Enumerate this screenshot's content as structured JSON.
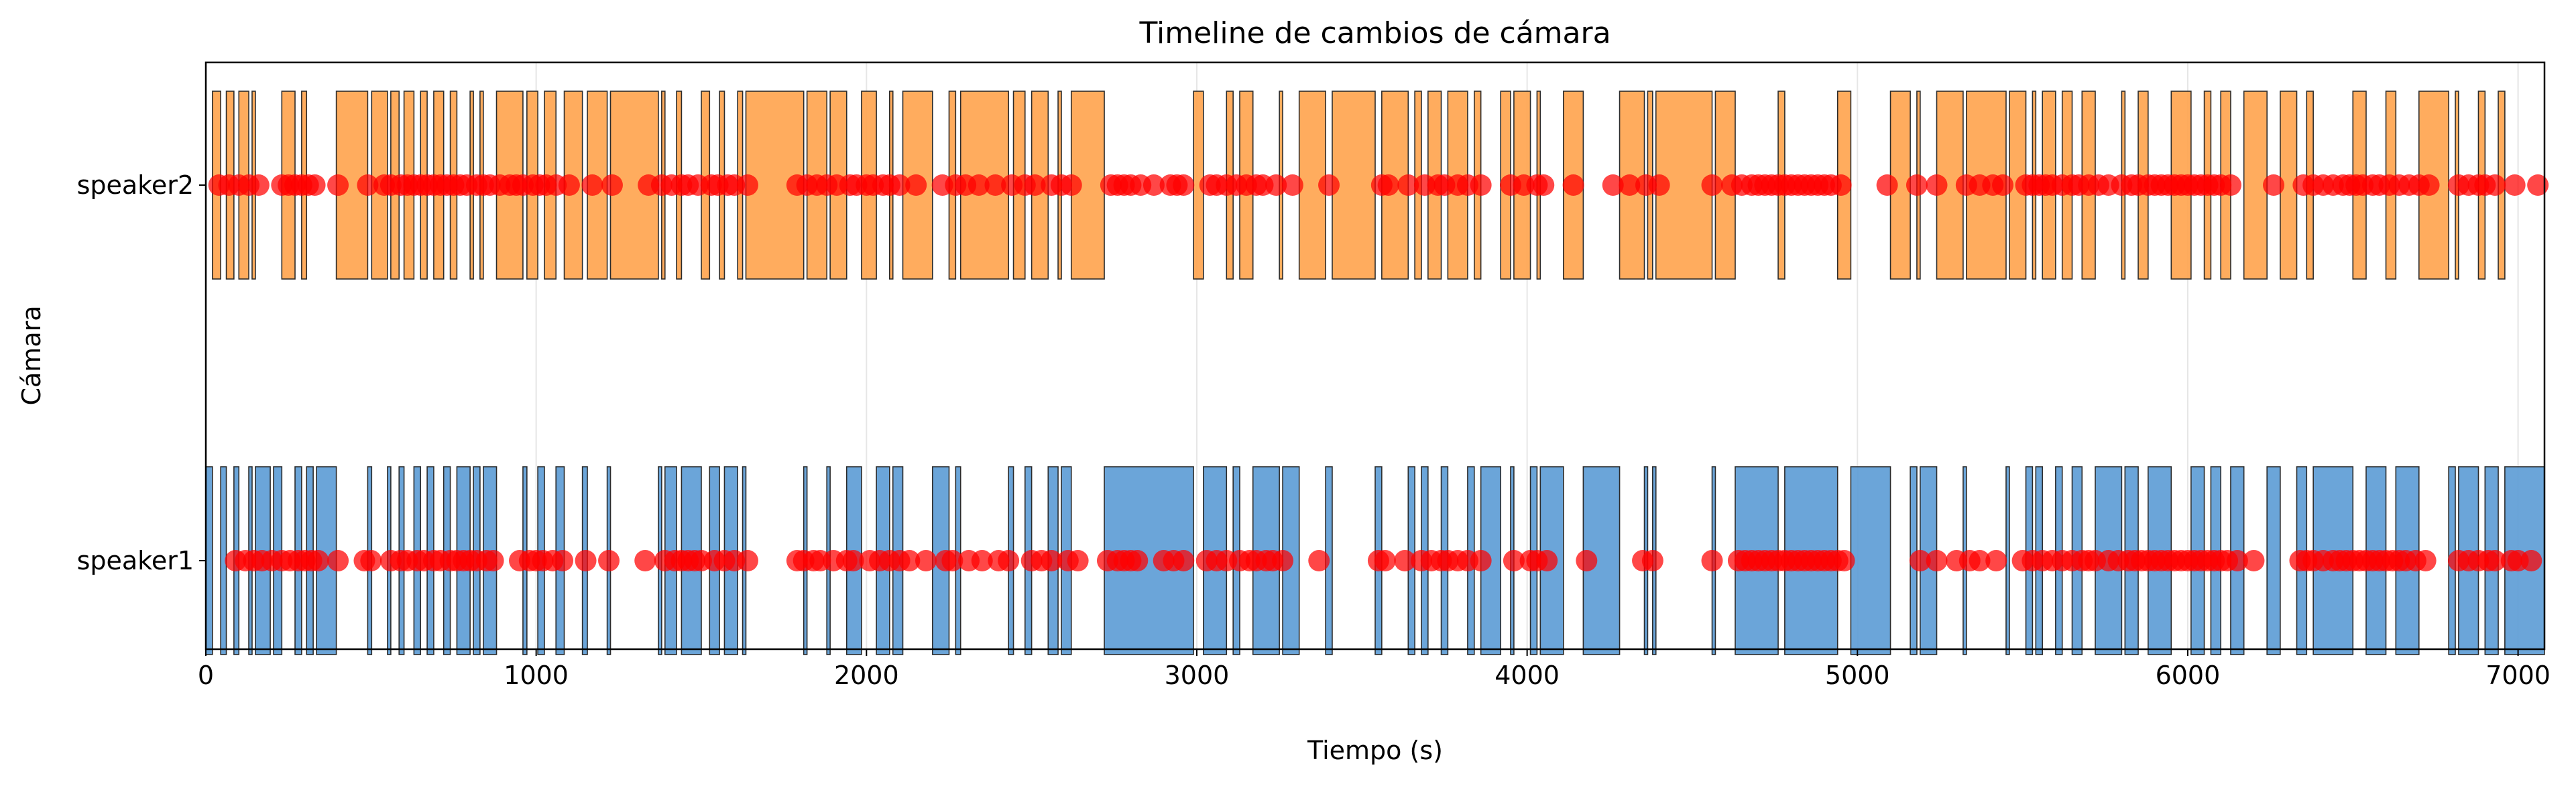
{
  "chart_data": {
    "type": "timeline",
    "title": "Timeline de cambios de cámara",
    "xlabel": "Tiempo (s)",
    "ylabel": "Cámara",
    "xlim": [
      0,
      7080
    ],
    "grid": true,
    "xticks": [
      0,
      1000,
      2000,
      3000,
      4000,
      5000,
      6000,
      7000
    ],
    "categories": [
      "speaker1",
      "speaker2"
    ],
    "colors": {
      "speaker1": "#5b9bd5",
      "speaker2": "#ffa34d",
      "change_marker": "#ff0000"
    },
    "series": [
      {
        "name": "speaker1",
        "segments": [
          [
            0,
            20
          ],
          [
            45,
            62
          ],
          [
            85,
            100
          ],
          [
            130,
            140
          ],
          [
            150,
            195
          ],
          [
            205,
            230
          ],
          [
            270,
            290
          ],
          [
            305,
            325
          ],
          [
            335,
            395
          ],
          [
            490,
            502
          ],
          [
            550,
            560
          ],
          [
            585,
            600
          ],
          [
            630,
            650
          ],
          [
            670,
            690
          ],
          [
            720,
            740
          ],
          [
            760,
            800
          ],
          [
            810,
            830
          ],
          [
            840,
            880
          ],
          [
            960,
            972
          ],
          [
            1005,
            1025
          ],
          [
            1060,
            1085
          ],
          [
            1140,
            1155
          ],
          [
            1215,
            1225
          ],
          [
            1370,
            1380
          ],
          [
            1390,
            1425
          ],
          [
            1440,
            1500
          ],
          [
            1525,
            1555
          ],
          [
            1570,
            1610
          ],
          [
            1625,
            1635
          ],
          [
            1810,
            1820
          ],
          [
            1880,
            1890
          ],
          [
            1940,
            1985
          ],
          [
            2030,
            2070
          ],
          [
            2080,
            2110
          ],
          [
            2200,
            2250
          ],
          [
            2270,
            2285
          ],
          [
            2430,
            2445
          ],
          [
            2480,
            2500
          ],
          [
            2550,
            2580
          ],
          [
            2590,
            2620
          ],
          [
            2720,
            2990
          ],
          [
            3020,
            3090
          ],
          [
            3110,
            3130
          ],
          [
            3170,
            3250
          ],
          [
            3260,
            3310
          ],
          [
            3390,
            3410
          ],
          [
            3540,
            3560
          ],
          [
            3640,
            3660
          ],
          [
            3680,
            3700
          ],
          [
            3740,
            3760
          ],
          [
            3820,
            3840
          ],
          [
            3860,
            3920
          ],
          [
            3950,
            3960
          ],
          [
            4010,
            4030
          ],
          [
            4040,
            4110
          ],
          [
            4170,
            4280
          ],
          [
            4355,
            4365
          ],
          [
            4380,
            4390
          ],
          [
            4560,
            4570
          ],
          [
            4630,
            4760
          ],
          [
            4780,
            4940
          ],
          [
            4980,
            5100
          ],
          [
            5160,
            5180
          ],
          [
            5190,
            5240
          ],
          [
            5320,
            5330
          ],
          [
            5450,
            5460
          ],
          [
            5510,
            5530
          ],
          [
            5540,
            5560
          ],
          [
            5600,
            5620
          ],
          [
            5650,
            5680
          ],
          [
            5720,
            5800
          ],
          [
            5810,
            5850
          ],
          [
            5880,
            5950
          ],
          [
            6010,
            6050
          ],
          [
            6070,
            6100
          ],
          [
            6130,
            6170
          ],
          [
            6240,
            6280
          ],
          [
            6330,
            6360
          ],
          [
            6380,
            6500
          ],
          [
            6540,
            6600
          ],
          [
            6630,
            6700
          ],
          [
            6790,
            6810
          ],
          [
            6820,
            6880
          ],
          [
            6900,
            6940
          ],
          [
            6960,
            7080
          ]
        ],
        "changes": [
          90,
          120,
          145,
          170,
          200,
          230,
          255,
          280,
          300,
          320,
          340,
          400,
          480,
          500,
          560,
          590,
          610,
          640,
          660,
          690,
          710,
          740,
          760,
          780,
          800,
          820,
          850,
          870,
          950,
          980,
          1000,
          1020,
          1050,
          1080,
          1150,
          1220,
          1330,
          1390,
          1420,
          1440,
          1460,
          1480,
          1500,
          1540,
          1570,
          1600,
          1640,
          1790,
          1810,
          1840,
          1860,
          1900,
          1940,
          1960,
          2010,
          2040,
          2070,
          2100,
          2130,
          2180,
          2240,
          2260,
          2310,
          2350,
          2400,
          2430,
          2500,
          2530,
          2560,
          2610,
          2640,
          2730,
          2760,
          2780,
          2800,
          2820,
          2900,
          2930,
          2960,
          3030,
          3060,
          3090,
          3130,
          3160,
          3180,
          3210,
          3230,
          3260,
          3370,
          3550,
          3570,
          3630,
          3680,
          3710,
          3740,
          3760,
          3790,
          3820,
          3860,
          3960,
          4010,
          4030,
          4060,
          4180,
          4350,
          4380,
          4560,
          4640,
          4660,
          4680,
          4700,
          4720,
          4740,
          4760,
          4780,
          4800,
          4820,
          4840,
          4860,
          4880,
          4900,
          4920,
          4940,
          4960,
          5190,
          5240,
          5300,
          5340,
          5370,
          5420,
          5500,
          5530,
          5560,
          5590,
          5620,
          5650,
          5680,
          5700,
          5720,
          5760,
          5790,
          5820,
          5840,
          5860,
          5880,
          5900,
          5920,
          5940,
          5960,
          5980,
          6000,
          6020,
          6040,
          6060,
          6080,
          6100,
          6120,
          6150,
          6200,
          6340,
          6360,
          6380,
          6410,
          6440,
          6460,
          6480,
          6500,
          6520,
          6540,
          6560,
          6580,
          6600,
          6620,
          6640,
          6660,
          6690,
          6720,
          6820,
          6850,
          6880,
          6910,
          6930,
          6980,
          7000,
          7040
        ]
      },
      {
        "name": "speaker2",
        "segments": [
          [
            20,
            45
          ],
          [
            62,
            85
          ],
          [
            100,
            130
          ],
          [
            140,
            150
          ],
          [
            230,
            270
          ],
          [
            290,
            305
          ],
          [
            395,
            490
          ],
          [
            502,
            550
          ],
          [
            560,
            585
          ],
          [
            600,
            630
          ],
          [
            650,
            670
          ],
          [
            690,
            720
          ],
          [
            740,
            760
          ],
          [
            800,
            810
          ],
          [
            830,
            840
          ],
          [
            880,
            960
          ],
          [
            972,
            1005
          ],
          [
            1025,
            1060
          ],
          [
            1085,
            1140
          ],
          [
            1155,
            1215
          ],
          [
            1225,
            1370
          ],
          [
            1380,
            1390
          ],
          [
            1425,
            1440
          ],
          [
            1500,
            1525
          ],
          [
            1555,
            1570
          ],
          [
            1610,
            1625
          ],
          [
            1635,
            1810
          ],
          [
            1820,
            1880
          ],
          [
            1890,
            1940
          ],
          [
            1985,
            2030
          ],
          [
            2070,
            2080
          ],
          [
            2110,
            2200
          ],
          [
            2250,
            2270
          ],
          [
            2285,
            2430
          ],
          [
            2445,
            2480
          ],
          [
            2500,
            2550
          ],
          [
            2580,
            2590
          ],
          [
            2620,
            2720
          ],
          [
            2990,
            3020
          ],
          [
            3090,
            3110
          ],
          [
            3130,
            3170
          ],
          [
            3250,
            3260
          ],
          [
            3310,
            3390
          ],
          [
            3410,
            3540
          ],
          [
            3560,
            3640
          ],
          [
            3660,
            3680
          ],
          [
            3700,
            3740
          ],
          [
            3760,
            3820
          ],
          [
            3840,
            3860
          ],
          [
            3920,
            3950
          ],
          [
            3960,
            4010
          ],
          [
            4030,
            4040
          ],
          [
            4110,
            4170
          ],
          [
            4280,
            4355
          ],
          [
            4365,
            4380
          ],
          [
            4390,
            4560
          ],
          [
            4570,
            4630
          ],
          [
            4760,
            4780
          ],
          [
            4940,
            4980
          ],
          [
            5100,
            5160
          ],
          [
            5180,
            5190
          ],
          [
            5240,
            5320
          ],
          [
            5330,
            5450
          ],
          [
            5460,
            5510
          ],
          [
            5530,
            5540
          ],
          [
            5560,
            5600
          ],
          [
            5620,
            5650
          ],
          [
            5680,
            5720
          ],
          [
            5800,
            5810
          ],
          [
            5850,
            5880
          ],
          [
            5950,
            6010
          ],
          [
            6050,
            6070
          ],
          [
            6100,
            6130
          ],
          [
            6170,
            6240
          ],
          [
            6280,
            6330
          ],
          [
            6360,
            6380
          ],
          [
            6500,
            6540
          ],
          [
            6600,
            6630
          ],
          [
            6700,
            6790
          ],
          [
            6810,
            6820
          ],
          [
            6880,
            6900
          ],
          [
            6940,
            6960
          ]
        ],
        "changes": [
          40,
          70,
          100,
          130,
          160,
          230,
          250,
          270,
          290,
          310,
          330,
          400,
          490,
          540,
          560,
          590,
          610,
          630,
          650,
          670,
          690,
          710,
          730,
          750,
          770,
          790,
          820,
          840,
          860,
          890,
          920,
          940,
          960,
          990,
          1010,
          1030,
          1060,
          1100,
          1170,
          1230,
          1340,
          1380,
          1410,
          1440,
          1460,
          1490,
          1530,
          1550,
          1580,
          1600,
          1640,
          1790,
          1820,
          1850,
          1880,
          1910,
          1950,
          1970,
          2000,
          2020,
          2050,
          2070,
          2100,
          2150,
          2230,
          2270,
          2300,
          2340,
          2390,
          2440,
          2480,
          2510,
          2560,
          2590,
          2620,
          2740,
          2760,
          2780,
          2800,
          2830,
          2870,
          2920,
          2940,
          2960,
          3040,
          3060,
          3090,
          3120,
          3150,
          3180,
          3200,
          3240,
          3290,
          3400,
          3560,
          3580,
          3640,
          3690,
          3730,
          3750,
          3790,
          3820,
          3860,
          3950,
          3990,
          4030,
          4050,
          4140,
          4260,
          4310,
          4360,
          4400,
          4560,
          4620,
          4650,
          4680,
          4700,
          4720,
          4740,
          4760,
          4780,
          4800,
          4820,
          4840,
          4860,
          4880,
          4900,
          4920,
          4950,
          5090,
          5180,
          5240,
          5330,
          5370,
          5410,
          5440,
          5510,
          5530,
          5550,
          5570,
          5590,
          5620,
          5650,
          5670,
          5700,
          5730,
          5760,
          5800,
          5830,
          5850,
          5880,
          5900,
          5920,
          5940,
          5960,
          5980,
          6000,
          6020,
          6040,
          6060,
          6080,
          6100,
          6130,
          6260,
          6350,
          6380,
          6410,
          6440,
          6470,
          6490,
          6510,
          6530,
          6560,
          6580,
          6610,
          6640,
          6670,
          6700,
          6730,
          6820,
          6850,
          6880,
          6900,
          6930,
          6990,
          7060
        ]
      }
    ]
  }
}
